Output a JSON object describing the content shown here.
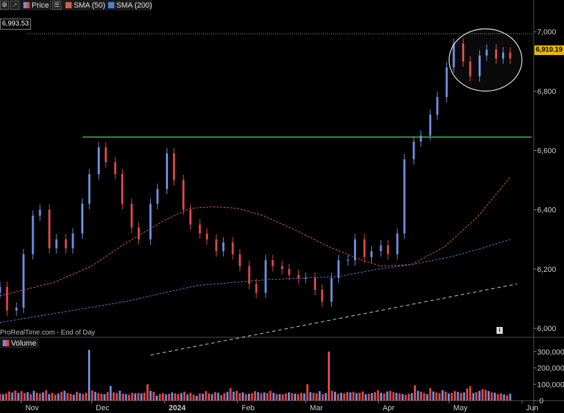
{
  "toolbar": {
    "price_label": "Price",
    "sma50_label": "SMA (50)",
    "sma200_label": "SMA (200)"
  },
  "colors": {
    "up": "#6f8fe0",
    "down": "#e04848",
    "sma50": "#e05a4a",
    "sma200": "#4d7ed8",
    "resistance": "#3fc44a",
    "trend": "#d0d0d0"
  },
  "last_price_tag": "6,910.19",
  "high_tag": "6,993.53",
  "source_text": "ProRealTime.com - End of Day",
  "volume_label": "Volume",
  "chart_data": [
    {
      "type": "candlestick",
      "title": "",
      "y_axis_ticks": [
        "6,000",
        "6,200",
        "6,400",
        "6,600",
        "6,800",
        "7,000"
      ],
      "x_axis_ticks": [
        "Nov",
        "Dec",
        "2024",
        "Feb",
        "Mar",
        "Apr",
        "May",
        "Jun"
      ],
      "ylim": [
        5970,
        7070
      ],
      "x_start": "2023-10-23",
      "x_end": "2024-06-06",
      "resistance_level": 6645,
      "annotation": "ellipse around May 2024 highs",
      "series": [
        {
          "name": "Price",
          "dates": [
            "2023-10-23",
            "2023-10-26",
            "2023-10-30",
            "2023-11-02",
            "2023-11-06",
            "2023-11-09",
            "2023-11-13",
            "2023-11-16",
            "2023-11-20",
            "2023-11-23",
            "2023-11-27",
            "2023-11-30",
            "2023-12-04",
            "2023-12-07",
            "2023-12-11",
            "2023-12-14",
            "2023-12-18",
            "2023-12-21",
            "2023-12-26",
            "2023-12-29",
            "2024-01-02",
            "2024-01-05",
            "2024-01-09",
            "2024-01-12",
            "2024-01-16",
            "2024-01-19",
            "2024-01-23",
            "2024-01-26",
            "2024-01-30",
            "2024-02-02",
            "2024-02-06",
            "2024-02-09",
            "2024-02-13",
            "2024-02-16",
            "2024-02-20",
            "2024-02-23",
            "2024-02-27",
            "2024-03-01",
            "2024-03-05",
            "2024-03-08",
            "2024-03-12",
            "2024-03-15",
            "2024-03-19",
            "2024-03-22",
            "2024-03-26",
            "2024-03-29",
            "2024-04-02",
            "2024-04-05",
            "2024-04-09",
            "2024-04-12",
            "2024-04-16",
            "2024-04-19",
            "2024-04-23",
            "2024-04-26",
            "2024-04-30",
            "2024-05-03",
            "2024-05-07",
            "2024-05-10",
            "2024-05-14",
            "2024-05-17",
            "2024-05-21",
            "2024-05-24",
            "2024-05-27"
          ],
          "close": [
            6140,
            6060,
            6070,
            6250,
            6380,
            6400,
            6270,
            6300,
            6270,
            6320,
            6420,
            6520,
            6610,
            6560,
            6520,
            6420,
            6340,
            6300,
            6420,
            6470,
            6590,
            6500,
            6400,
            6350,
            6320,
            6300,
            6260,
            6290,
            6250,
            6210,
            6150,
            6120,
            6230,
            6210,
            6200,
            6180,
            6170,
            6170,
            6130,
            6090,
            6170,
            6230,
            6230,
            6300,
            6240,
            6260,
            6280,
            6250,
            6320,
            6570,
            6630,
            6650,
            6720,
            6780,
            6880,
            6960,
            6900,
            6850,
            6920,
            6940,
            6910,
            6930,
            6910
          ]
        }
      ],
      "moving_averages": [
        {
          "name": "SMA (50)",
          "dates": [
            "2023-10-23",
            "2023-11-15",
            "2023-12-01",
            "2023-12-15",
            "2024-01-01",
            "2024-01-12",
            "2024-01-22",
            "2024-02-01",
            "2024-02-12",
            "2024-02-26",
            "2024-03-11",
            "2024-03-25",
            "2024-04-02",
            "2024-04-15",
            "2024-04-29",
            "2024-05-13",
            "2024-05-27"
          ],
          "values": [
            6110,
            6155,
            6210,
            6285,
            6365,
            6405,
            6410,
            6405,
            6380,
            6330,
            6275,
            6230,
            6210,
            6215,
            6275,
            6375,
            6510
          ]
        },
        {
          "name": "SMA (200)",
          "dates": [
            "2023-10-23",
            "2023-11-15",
            "2023-12-15",
            "2024-01-15",
            "2024-02-15",
            "2024-03-15",
            "2024-04-01",
            "2024-04-15",
            "2024-05-01",
            "2024-05-15",
            "2024-05-27"
          ],
          "values": [
            6020,
            6050,
            6090,
            6145,
            6165,
            6175,
            6200,
            6215,
            6240,
            6270,
            6300
          ]
        }
      ],
      "trendline": {
        "dates": [
          "2023-12-26",
          "2024-05-30"
        ],
        "values": [
          5910,
          6150
        ]
      }
    },
    {
      "type": "bar",
      "title": "Volume",
      "y_axis_ticks": [
        "0",
        "100,000",
        "200,000",
        "300,000"
      ],
      "ylim": [
        0,
        320000
      ],
      "values": [
        42000,
        38000,
        44000,
        56000,
        50000,
        62000,
        48000,
        58000,
        46000,
        52000,
        40000,
        60000,
        48000,
        44000,
        50000,
        64000,
        40000,
        48000,
        36000,
        44000,
        54000,
        60000,
        46000,
        42000,
        36000,
        54000,
        46000,
        40000,
        48000,
        310000,
        62000,
        54000,
        46000,
        42000,
        40000,
        52000,
        90000,
        50000,
        46000,
        60000,
        42000,
        40000,
        36000,
        48000,
        44000,
        46000,
        44000,
        48000,
        100000,
        60000,
        54000,
        30000,
        40000,
        46000,
        38000,
        42000,
        50000,
        44000,
        40000,
        46000,
        54000,
        38000,
        48000,
        36000,
        30000,
        44000,
        42000,
        58000,
        44000,
        40000,
        52000,
        48000,
        34000,
        46000,
        54000,
        76000,
        54000,
        60000,
        46000,
        50000,
        40000,
        42000,
        46000,
        58000,
        52000,
        44000,
        50000,
        46000,
        60000,
        48000,
        40000,
        40000,
        38000,
        44000,
        50000,
        46000,
        42000,
        40000,
        48000,
        44000,
        100000,
        52000,
        48000,
        44000,
        58000,
        40000,
        46000,
        300000,
        60000,
        54000,
        42000,
        48000,
        44000,
        52000,
        50000,
        54000,
        46000,
        48000,
        56000,
        40000,
        42000,
        46000,
        52000,
        64000,
        48000,
        44000,
        56000,
        60000,
        52000,
        48000,
        44000,
        40000,
        36000,
        42000,
        46000,
        94000,
        60000,
        54000,
        46000,
        40000,
        76000,
        56000,
        50000,
        46000,
        64000,
        54000,
        44000,
        48000,
        58000,
        54000,
        46000,
        50000,
        74000,
        88000,
        46000,
        52000,
        60000,
        70000,
        66000,
        58000,
        50000,
        48000,
        40000,
        44000,
        38000,
        32000,
        42000
      ]
    }
  ]
}
